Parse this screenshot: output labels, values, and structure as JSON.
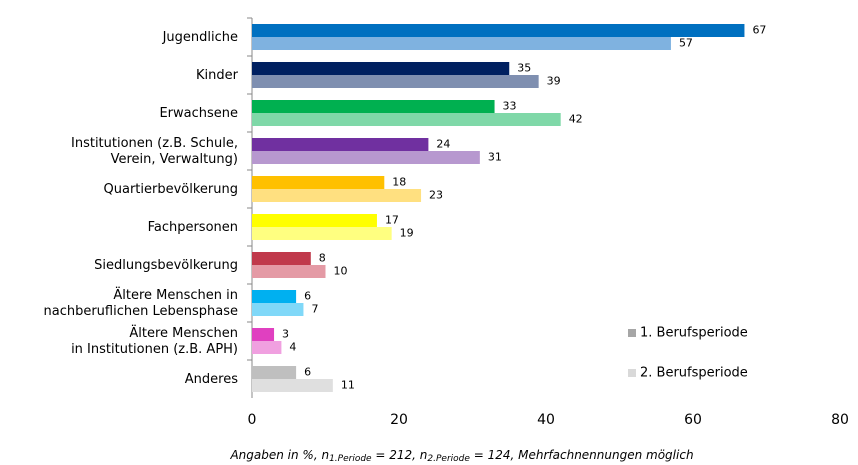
{
  "chart_data": {
    "type": "bar",
    "orientation": "horizontal",
    "categories": [
      "Jugendliche",
      "Kinder",
      "Erwachsene",
      "Institutionen (z.B. Schule,\nVerein, Verwaltung)",
      "Quartierbevölkerung",
      "Fachpersonen",
      "Siedlungsbevölkerung",
      "Ältere Menschen in\nnachberuflichen Lebensphase",
      "Ältere Menschen\nin Institutionen (z.B. APH)",
      "Anderes"
    ],
    "series": [
      {
        "name": "1. Berufsperiode",
        "color": "#a6a6a6",
        "values": [
          67,
          35,
          33,
          24,
          18,
          17,
          8,
          6,
          3,
          6
        ],
        "bar_colors": [
          "#0070c0",
          "#002060",
          "#00b050",
          "#7030a0",
          "#ffc000",
          "#ffff00",
          "#c0394b",
          "#00b0f0",
          "#e040c0",
          "#bfbfbf"
        ]
      },
      {
        "name": "2. Berufsperiode",
        "color": "#d9d9d9",
        "values": [
          57,
          39,
          42,
          31,
          23,
          19,
          10,
          7,
          4,
          11
        ],
        "bar_colors": [
          "#7fb2e0",
          "#7f8fb0",
          "#7fd8a8",
          "#b798cf",
          "#ffe080",
          "#ffff80",
          "#e49aa5",
          "#80d8f8",
          "#f0a0e0",
          "#dfdfdf"
        ]
      }
    ],
    "xlim": [
      0,
      80
    ],
    "xticks": [
      0,
      20,
      40,
      60,
      80
    ],
    "grid": false,
    "legend": "lower right",
    "note": [
      "Angaben in %, n",
      "1.Periode",
      " = 212, n",
      "2.Periode",
      " = 124, Mehrfachnennungen möglich"
    ]
  }
}
